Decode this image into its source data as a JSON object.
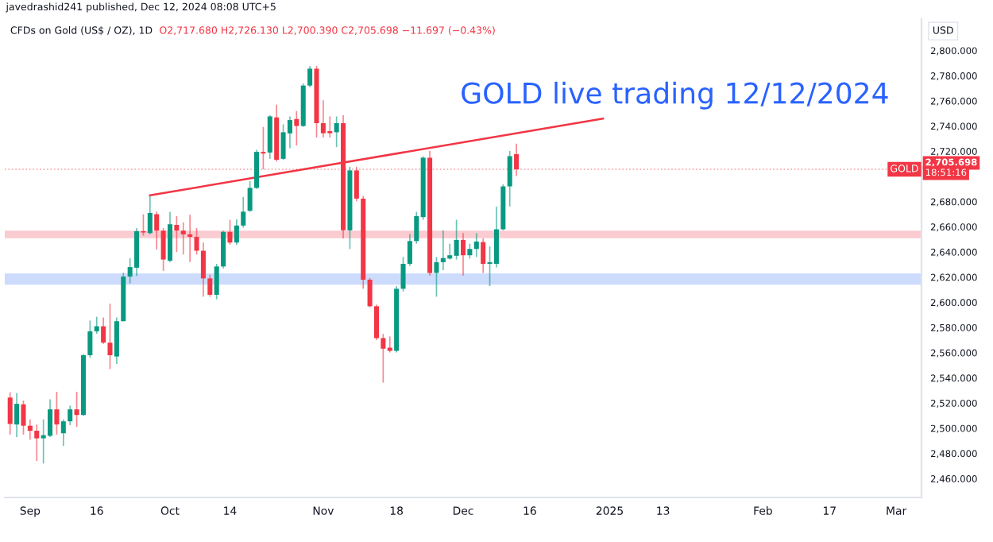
{
  "chart_data": {
    "type": "candlestick",
    "title": "GOLD live trading 12/12/2024",
    "subtitle": "CFDs on Gold (US$ / OZ), 1D",
    "ylabel": "USD",
    "annotations": [
      "O2,717.680 H2,726.130 L2,700.390 C2,705.698 −11.697 (−0.43%)",
      "javedrashid241 published, Dec 12, 2024 08:08 UTC+5",
      "GOLD",
      "18:51:16"
    ],
    "categories": [
      null,
      null,
      null,
      "Sep",
      null,
      null,
      null,
      null,
      null,
      null,
      null,
      null,
      null,
      "16",
      null,
      null,
      null,
      null,
      null,
      null,
      null,
      null,
      null,
      null,
      "Oct",
      null,
      null,
      null,
      null,
      null,
      null,
      null,
      null,
      "14",
      null,
      null,
      null,
      null,
      null,
      null,
      null,
      null,
      null,
      null,
      null,
      null,
      null,
      "Nov",
      null,
      null,
      null,
      null,
      null,
      null,
      null,
      null,
      null,
      null,
      "18",
      null,
      null,
      null,
      null,
      null,
      null,
      null,
      null,
      null,
      "Dec",
      null,
      null,
      null,
      null,
      null,
      null,
      null,
      null,
      null,
      "16",
      null,
      null,
      null,
      null,
      null,
      null,
      null,
      null,
      null,
      null,
      null,
      "2025",
      null,
      null,
      null,
      null,
      null,
      null,
      null,
      "13",
      null,
      null,
      null,
      null,
      null,
      null,
      null,
      null,
      null,
      null,
      null,
      null,
      null,
      null,
      "Feb",
      null,
      null,
      null,
      null,
      null,
      null,
      null,
      null,
      null,
      "17",
      null,
      null,
      null,
      null,
      null,
      null,
      null,
      null,
      null,
      "Mar",
      null,
      null,
      null
    ],
    "ohlc": [
      [
        2524.4,
        2528.6,
        2495,
        2503.4
      ],
      [
        2503,
        2528,
        2493,
        2519.4
      ],
      [
        2519,
        2522,
        2495,
        2502
      ],
      [
        2502,
        2507,
        2491,
        2498
      ],
      [
        2498,
        2503,
        2474,
        2492
      ],
      [
        2492,
        2507,
        2472,
        2494.5
      ],
      [
        2494,
        2523,
        2493,
        2515
      ],
      [
        2515,
        2529,
        2495,
        2503
      ],
      [
        2496,
        2507,
        2486,
        2505.5
      ],
      [
        2505.5,
        2518,
        2502.5,
        2515
      ],
      [
        2515,
        2529,
        2501,
        2510.5
      ],
      [
        2510.5,
        2559,
        2510,
        2558
      ],
      [
        2558,
        2585.5,
        2556,
        2577
      ],
      [
        2577,
        2588.5,
        2575,
        2581
      ],
      [
        2581,
        2588,
        2567,
        2568
      ],
      [
        2568,
        2599,
        2547,
        2558
      ],
      [
        2557,
        2588,
        2551,
        2585
      ],
      [
        2585,
        2623.5,
        2585,
        2620.5
      ],
      [
        2620.5,
        2635,
        2615,
        2628
      ],
      [
        2627.5,
        2659,
        2621,
        2656.5
      ],
      [
        2656.5,
        2670,
        2653,
        2655.5
      ],
      [
        2655,
        2684.5,
        2654,
        2671
      ],
      [
        2670,
        2672,
        2642,
        2657
      ],
      [
        2657,
        2659,
        2625,
        2634
      ],
      [
        2633,
        2672,
        2632,
        2662
      ],
      [
        2661.5,
        2668.5,
        2640,
        2657
      ],
      [
        2657,
        2663.5,
        2638,
        2654
      ],
      [
        2654,
        2669.5,
        2632,
        2652
      ],
      [
        2652,
        2659,
        2638,
        2641
      ],
      [
        2641,
        2647.5,
        2604.5,
        2619
      ],
      [
        2619,
        2622,
        2604.5,
        2606
      ],
      [
        2606,
        2630.6,
        2602.4,
        2628.5
      ],
      [
        2628.5,
        2657,
        2627,
        2656
      ],
      [
        2656,
        2665.6,
        2645.8,
        2647.5
      ],
      [
        2647.5,
        2666,
        2645.8,
        2661
      ],
      [
        2661,
        2683.7,
        2659.3,
        2672
      ],
      [
        2672.7,
        2696.3,
        2671.9,
        2690.9
      ],
      [
        2690.9,
        2721.2,
        2690,
        2719.5
      ],
      [
        2719.5,
        2739.3,
        2705.6,
        2718.2
      ],
      [
        2719,
        2748.6,
        2714,
        2747.7
      ],
      [
        2746.9,
        2757,
        2711.9,
        2713.2
      ],
      [
        2714,
        2741.4,
        2713.2,
        2735.1
      ],
      [
        2734.2,
        2747.7,
        2722.5,
        2744.8
      ],
      [
        2745.6,
        2752,
        2724.6,
        2740.1
      ],
      [
        2740.1,
        2773.9,
        2739.3,
        2772.2
      ],
      [
        2772.2,
        2787.8,
        2770.9,
        2785.6
      ],
      [
        2785.6,
        2787.8,
        2730.9,
        2742.3
      ],
      [
        2742.3,
        2760.4,
        2730.9,
        2734.3
      ],
      [
        2736,
        2747.7,
        2730.9,
        2734.3
      ],
      [
        2735.1,
        2747.7,
        2723.3,
        2742.3
      ],
      [
        2742.3,
        2748.6,
        2650.8,
        2657.2
      ],
      [
        2657.2,
        2707.7,
        2642.4,
        2704.8
      ],
      [
        2704.8,
        2707.7,
        2680.3,
        2682.4
      ],
      [
        2682.4,
        2684.5,
        2610.8,
        2618
      ],
      [
        2618,
        2619.2,
        2596,
        2596.9
      ],
      [
        2596.9,
        2598.2,
        2570,
        2571.6
      ],
      [
        2571.6,
        2575,
        2536.2,
        2563.2
      ],
      [
        2564,
        2572.9,
        2560.2,
        2561.5
      ],
      [
        2561.5,
        2612.9,
        2560.2,
        2610.8
      ],
      [
        2610.8,
        2636.1,
        2608.7,
        2630.6
      ],
      [
        2630.6,
        2654.2,
        2628.9,
        2648.7
      ],
      [
        2648.7,
        2671.9,
        2646.6,
        2668.5
      ],
      [
        2667.7,
        2716.1,
        2665.6,
        2714.9
      ],
      [
        2714.9,
        2720.3,
        2621.3,
        2623.4
      ],
      [
        2623.4,
        2636.1,
        2604.5,
        2631.9
      ],
      [
        2631.9,
        2657.2,
        2625.6,
        2635.2
      ],
      [
        2634.8,
        2646.6,
        2634,
        2637.4
      ],
      [
        2637,
        2665.6,
        2634,
        2649.6
      ],
      [
        2649.6,
        2655,
        2621.3,
        2637.4
      ],
      [
        2637.4,
        2646.6,
        2634.8,
        2642.4
      ],
      [
        2642.4,
        2655,
        2636.1,
        2648.3
      ],
      [
        2647.9,
        2650.8,
        2623.4,
        2630.6
      ],
      [
        2630.6,
        2644.5,
        2612.9,
        2631.9
      ],
      [
        2630.6,
        2676.1,
        2627.7,
        2658
      ],
      [
        2658,
        2693.8,
        2657.2,
        2692.1
      ],
      [
        2692.1,
        2720.3,
        2676.1,
        2716.1
      ],
      [
        2717.68,
        2726.13,
        2700.39,
        2705.698
      ],
      null,
      null,
      null,
      null,
      null,
      null,
      null,
      null,
      null,
      null,
      null,
      null,
      null,
      null,
      null,
      null,
      null,
      null,
      null,
      null,
      null,
      null,
      null,
      null,
      null,
      null,
      null,
      null,
      null,
      null,
      null,
      null,
      null,
      null,
      null,
      null,
      null,
      null,
      null,
      null,
      null,
      null,
      null,
      null,
      null,
      null,
      null,
      null,
      null,
      null,
      null,
      null,
      null,
      null,
      null,
      null,
      null,
      null,
      null,
      null
    ],
    "series": [
      {
        "type": "line",
        "color": "#f23645",
        "values": [
          null,
          null,
          null,
          null,
          null,
          null,
          null,
          null,
          null,
          null,
          null,
          null,
          null,
          null,
          null,
          null,
          null,
          null,
          null,
          null,
          null,
          2685,
          null,
          null,
          null,
          null,
          null,
          null,
          null,
          null,
          null,
          null,
          null,
          null,
          null,
          null,
          null,
          null,
          null,
          null,
          null,
          null,
          null,
          null,
          null,
          null,
          null,
          null,
          null,
          null,
          null,
          null,
          null,
          null,
          null,
          null,
          null,
          null,
          null,
          null,
          null,
          null,
          null,
          null,
          null,
          null,
          null,
          null,
          null,
          null,
          null,
          null,
          null,
          null,
          null,
          null,
          null,
          null,
          null,
          null,
          null,
          null,
          null,
          null,
          null,
          null,
          null,
          null,
          null,
          2746,
          null,
          null,
          null,
          null,
          null,
          null,
          null,
          null,
          null,
          null,
          null,
          null,
          null,
          null,
          null,
          null,
          null,
          null,
          null,
          null,
          null,
          null,
          null,
          null,
          null,
          null,
          null,
          null,
          null,
          null,
          null,
          null,
          null,
          null,
          null,
          null,
          null,
          null,
          null,
          null,
          null,
          null,
          null,
          null,
          null,
          null,
          null
        ]
      }
    ],
    "ylim": [
      2445,
      2825
    ],
    "yticks": [
      {
        "value": 2460,
        "label": "2,460.000"
      },
      {
        "value": 2480,
        "label": "2,480.000"
      },
      {
        "value": 2500,
        "label": "2,500.000"
      },
      {
        "value": 2520,
        "label": "2,520.000"
      },
      {
        "value": 2540,
        "label": "2,540.000"
      },
      {
        "value": 2560,
        "label": "2,560.000"
      },
      {
        "value": 2580,
        "label": "2,580.000"
      },
      {
        "value": 2600,
        "label": "2,600.000"
      },
      {
        "value": 2620,
        "label": "2,620.000"
      },
      {
        "value": 2640,
        "label": "2,640.000"
      },
      {
        "value": 2660,
        "label": "2,660.000"
      },
      {
        "value": 2680,
        "label": "2,680.000"
      },
      {
        "value": 2720,
        "label": "2,720.000"
      },
      {
        "value": 2740,
        "label": "2,740.000"
      },
      {
        "value": 2760,
        "label": "2,760.000"
      },
      {
        "value": 2780,
        "label": "2,780.000"
      },
      {
        "value": 2800,
        "label": "2,800.000"
      }
    ],
    "ref_lines": [
      {
        "axis": "y",
        "value": 2705.698,
        "label": "2,705.698",
        "color": "#f23645",
        "line_style": "dotted"
      }
    ],
    "bands": [
      {
        "axis": "y",
        "from": 2651,
        "to": 2657,
        "color": "#f7a8b0"
      },
      {
        "axis": "y",
        "from": 2614,
        "to": 2623,
        "color": "#abc3fa"
      }
    ]
  }
}
